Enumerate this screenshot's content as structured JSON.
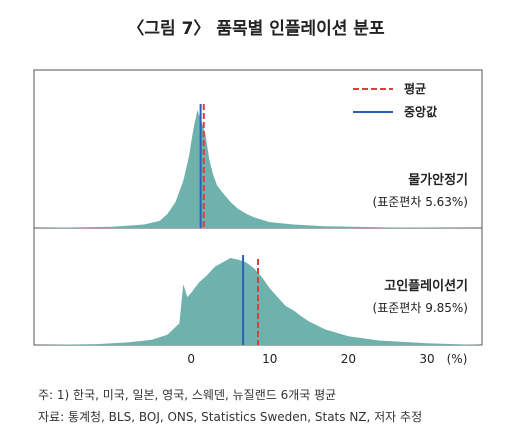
{
  "title": "〈그림 7〉 품목별 인플레이션 분포",
  "colors": {
    "density_fill": "#6fb1ad",
    "mean_line": "#e23b3b",
    "median_line": "#2b62b0",
    "frame": "#555555"
  },
  "legend": {
    "mean": "평균",
    "median": "중앙값",
    "position": "top-right"
  },
  "notes": {
    "line1": "주: 1) 한국, 미국, 일본, 영국, 스웨덴, 뉴질랜드 6개국 평균",
    "line2": "자료: 통계청, BLS, BOJ, ONS, Statistics Sweden, Stats NZ, 저자 추정"
  },
  "chart_data": {
    "type": "area",
    "xlim": [
      -20,
      37
    ],
    "xticks": [
      0,
      10,
      20,
      30
    ],
    "x_unit": "(%)",
    "panels": [
      {
        "label": "물가안정기",
        "sublabel": "(표준편차 5.63%)",
        "mean": 1.6,
        "median": 1.2,
        "density": [
          [
            -20,
            0.0
          ],
          [
            -10,
            0.01
          ],
          [
            -6,
            0.03
          ],
          [
            -4,
            0.06
          ],
          [
            -3,
            0.12
          ],
          [
            -2,
            0.22
          ],
          [
            -1,
            0.4
          ],
          [
            -0.3,
            0.6
          ],
          [
            0.3,
            0.85
          ],
          [
            0.8,
            1.0
          ],
          [
            1.3,
            0.9
          ],
          [
            1.8,
            0.8
          ],
          [
            2.3,
            0.58
          ],
          [
            2.8,
            0.45
          ],
          [
            3.3,
            0.36
          ],
          [
            4,
            0.3
          ],
          [
            5,
            0.22
          ],
          [
            6,
            0.16
          ],
          [
            7,
            0.12
          ],
          [
            8,
            0.09
          ],
          [
            10,
            0.05
          ],
          [
            13,
            0.03
          ],
          [
            17,
            0.015
          ],
          [
            25,
            0.005
          ],
          [
            37,
            0.0
          ]
        ]
      },
      {
        "label": "고인플레이션기",
        "sublabel": "(표준편차 9.85%)",
        "mean": 8.5,
        "median": 6.6,
        "density": [
          [
            -20,
            0.0
          ],
          [
            -12,
            0.01
          ],
          [
            -8,
            0.03
          ],
          [
            -5,
            0.06
          ],
          [
            -3,
            0.12
          ],
          [
            -1.5,
            0.25
          ],
          [
            -1,
            0.7
          ],
          [
            -0.5,
            0.55
          ],
          [
            0,
            0.6
          ],
          [
            1,
            0.72
          ],
          [
            2,
            0.8
          ],
          [
            3,
            0.9
          ],
          [
            4,
            0.95
          ],
          [
            5,
            1.0
          ],
          [
            6,
            0.98
          ],
          [
            7,
            0.95
          ],
          [
            8,
            0.88
          ],
          [
            9,
            0.78
          ],
          [
            10,
            0.65
          ],
          [
            11,
            0.55
          ],
          [
            12,
            0.45
          ],
          [
            13,
            0.4
          ],
          [
            14,
            0.33
          ],
          [
            15,
            0.27
          ],
          [
            17,
            0.18
          ],
          [
            20,
            0.1
          ],
          [
            24,
            0.05
          ],
          [
            30,
            0.02
          ],
          [
            37,
            0.0
          ]
        ]
      }
    ]
  }
}
